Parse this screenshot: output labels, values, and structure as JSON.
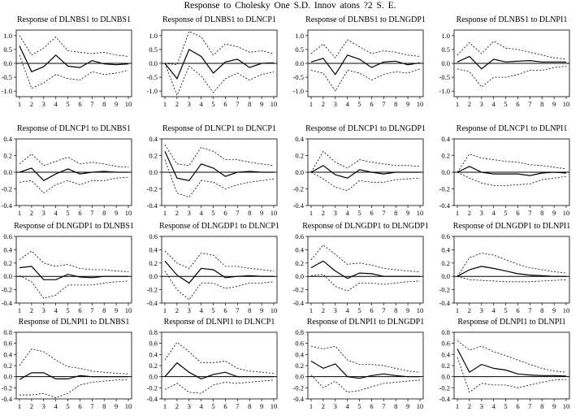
{
  "title": "Response  to  Cholesky  One  S.D. Innov  atons  ?2  S.  E.",
  "chart_data": {
    "type": "line",
    "x_ticks": [
      "1",
      "2",
      "3",
      "4",
      "5",
      "6",
      "7",
      "8",
      "9",
      "10"
    ],
    "grid": false,
    "panels": [
      {
        "title": "Response of DLNBS1 to  DLNBS1",
        "ylim": [
          -1.2,
          1.2
        ],
        "yticks": [
          1.0,
          0.5,
          0.0,
          -0.5,
          -1.0
        ],
        "ytick_labels": [
          "1.0",
          "0.5",
          "0.0",
          "-0.5",
          "-1.0"
        ],
        "response": [
          0.63,
          -0.3,
          -0.12,
          0.3,
          -0.1,
          -0.15,
          0.1,
          -0.02,
          -0.05,
          -0.02
        ],
        "upper": [
          1.0,
          0.3,
          0.55,
          0.95,
          0.45,
          0.4,
          0.35,
          0.4,
          0.3,
          0.25
        ],
        "lower": [
          0.3,
          -0.9,
          -0.7,
          -0.4,
          -0.55,
          -0.6,
          -0.3,
          -0.4,
          -0.35,
          -0.25
        ]
      },
      {
        "title": "Response of DLNBS1 to  DLNCP1",
        "ylim": [
          -1.2,
          1.2
        ],
        "yticks": [
          1.0,
          0.5,
          0.0,
          -0.5,
          -1.0
        ],
        "ytick_labels": [
          "1.0",
          "0.5",
          "0.0",
          "-0.5",
          "-1.0"
        ],
        "response": [
          0.0,
          -0.55,
          0.5,
          0.25,
          -0.35,
          0.05,
          0.15,
          -0.15,
          0.0,
          0.02
        ],
        "upper": [
          0.0,
          -0.05,
          1.15,
          0.95,
          0.3,
          0.7,
          0.6,
          0.4,
          0.45,
          0.35
        ],
        "lower": [
          0.0,
          -1.15,
          -0.1,
          -0.45,
          -1.05,
          -0.55,
          -0.35,
          -0.6,
          -0.4,
          -0.3
        ]
      },
      {
        "title": "Response of DLNBS1 to  DLNGDP1",
        "ylim": [
          -1.2,
          1.2
        ],
        "yticks": [
          1.0,
          0.5,
          0.0,
          -0.5,
          -1.0
        ],
        "ytick_labels": [
          "1.0",
          "0.5",
          "0.0",
          "-0.5",
          "-1.0"
        ],
        "response": [
          0.05,
          0.18,
          -0.4,
          0.3,
          0.15,
          -0.15,
          0.05,
          0.08,
          -0.05,
          0.02
        ],
        "upper": [
          0.35,
          0.7,
          0.2,
          0.85,
          0.6,
          0.35,
          0.45,
          0.4,
          0.3,
          0.25
        ],
        "lower": [
          -0.25,
          -0.35,
          -1.0,
          -0.25,
          -0.35,
          -0.6,
          -0.4,
          -0.3,
          -0.35,
          -0.2
        ]
      },
      {
        "title": "Response of DLNBS1 to  DLNPI1",
        "ylim": [
          -1.2,
          1.2
        ],
        "yticks": [
          1.0,
          0.5,
          0.0,
          -0.5,
          -1.0
        ],
        "ytick_labels": [
          "1.0",
          "0.5",
          "0.0",
          "-0.5",
          "-1.0"
        ],
        "response": [
          0.05,
          0.25,
          -0.2,
          0.15,
          0.05,
          0.08,
          0.1,
          0.05,
          0.05,
          0.05
        ],
        "upper": [
          0.3,
          0.75,
          0.35,
          0.8,
          0.55,
          0.5,
          0.4,
          0.3,
          0.2,
          0.15
        ],
        "lower": [
          -0.2,
          -0.3,
          -0.85,
          -0.5,
          -0.5,
          -0.4,
          -0.25,
          -0.25,
          -0.15,
          -0.1
        ]
      },
      {
        "title": "Response of DLNCP1 to  DLNBS1",
        "ylim": [
          -0.4,
          0.4
        ],
        "yticks": [
          0.4,
          0.2,
          0.0,
          -0.2,
          -0.4
        ],
        "ytick_labels": [
          "0.4",
          "0.2",
          "0.0",
          "-0.2",
          "-0.4"
        ],
        "response": [
          0.0,
          0.05,
          -0.1,
          -0.02,
          0.04,
          -0.02,
          0.0,
          0.01,
          0.0,
          0.0
        ],
        "upper": [
          0.1,
          0.22,
          0.08,
          0.13,
          0.18,
          0.1,
          0.12,
          0.1,
          0.07,
          0.06
        ],
        "lower": [
          -0.12,
          -0.1,
          -0.25,
          -0.15,
          -0.1,
          -0.15,
          -0.1,
          -0.1,
          -0.07,
          -0.06
        ]
      },
      {
        "title": "Response of DLNCP1 to  DLNCP1",
        "ylim": [
          -0.4,
          0.4
        ],
        "yticks": [
          0.4,
          0.2,
          0.0,
          -0.2,
          -0.4
        ],
        "ytick_labels": [
          "0.4",
          "0.2",
          "0.0",
          "-0.2",
          "-0.4"
        ],
        "response": [
          0.25,
          -0.07,
          -0.1,
          0.1,
          0.05,
          -0.05,
          0.0,
          0.01,
          0.0,
          0.0
        ],
        "upper": [
          0.33,
          0.1,
          0.08,
          0.3,
          0.25,
          0.15,
          0.15,
          0.12,
          0.1,
          0.08
        ],
        "lower": [
          0.15,
          -0.25,
          -0.3,
          -0.1,
          -0.12,
          -0.2,
          -0.15,
          -0.12,
          -0.1,
          -0.08
        ]
      },
      {
        "title": "Response of DLNCP1 to  DLNGDP1",
        "ylim": [
          -0.4,
          0.4
        ],
        "yticks": [
          0.4,
          0.2,
          0.0,
          -0.2,
          -0.4
        ],
        "ytick_labels": [
          "0.4",
          "0.2",
          "0.0",
          "-0.2",
          "-0.4"
        ],
        "response": [
          0.0,
          0.08,
          -0.03,
          -0.07,
          0.03,
          0.0,
          -0.02,
          0.0,
          0.0,
          0.0
        ],
        "upper": [
          0.0,
          0.25,
          0.12,
          0.05,
          0.15,
          0.12,
          0.1,
          0.08,
          0.08,
          0.07
        ],
        "lower": [
          0.0,
          -0.08,
          -0.18,
          -0.22,
          -0.1,
          -0.12,
          -0.12,
          -0.09,
          -0.08,
          -0.07
        ]
      },
      {
        "title": "Response of DLNCP1 to  DLNPI1",
        "ylim": [
          -0.4,
          0.4
        ],
        "yticks": [
          0.4,
          0.2,
          0.0,
          -0.2,
          -0.4
        ],
        "ytick_labels": [
          "0.4",
          "0.2",
          "0.0",
          "-0.2",
          "-0.4"
        ],
        "response": [
          0.0,
          0.07,
          0.0,
          -0.02,
          -0.02,
          -0.02,
          -0.04,
          -0.01,
          0.0,
          -0.01
        ],
        "upper": [
          0.0,
          0.22,
          0.17,
          0.15,
          0.13,
          0.12,
          0.09,
          0.08,
          0.06,
          0.04
        ],
        "lower": [
          0.0,
          -0.07,
          -0.13,
          -0.16,
          -0.16,
          -0.15,
          -0.14,
          -0.09,
          -0.07,
          -0.05
        ]
      },
      {
        "title": "Response of DLNGDP1 to  DLNBS1",
        "ylim": [
          -0.4,
          0.6
        ],
        "yticks": [
          0.6,
          0.4,
          0.2,
          0.0,
          -0.2,
          -0.4
        ],
        "ytick_labels": [
          "0.6",
          "0.4",
          "0.2",
          "0.0",
          "-0.2",
          "-0.4"
        ],
        "response": [
          0.13,
          0.15,
          -0.05,
          -0.05,
          0.03,
          -0.01,
          -0.02,
          0.0,
          0.0,
          0.0
        ],
        "upper": [
          0.25,
          0.38,
          0.2,
          0.15,
          0.18,
          0.12,
          0.1,
          0.1,
          0.08,
          0.07
        ],
        "lower": [
          0.01,
          -0.08,
          -0.33,
          -0.28,
          -0.13,
          -0.13,
          -0.13,
          -0.1,
          -0.08,
          -0.07
        ]
      },
      {
        "title": "Response of DLNGDP1 to  DLNCP1",
        "ylim": [
          -0.4,
          0.6
        ],
        "yticks": [
          0.6,
          0.4,
          0.2,
          0.0,
          -0.2,
          -0.4
        ],
        "ytick_labels": [
          "0.6",
          "0.4",
          "0.2",
          "0.0",
          "-0.2",
          "-0.4"
        ],
        "response": [
          0.23,
          0.02,
          -0.1,
          0.12,
          0.1,
          -0.02,
          0.0,
          0.01,
          0.0,
          0.0
        ],
        "upper": [
          0.38,
          0.2,
          0.12,
          0.35,
          0.32,
          0.15,
          0.15,
          0.12,
          0.1,
          0.08
        ],
        "lower": [
          0.08,
          -0.2,
          -0.35,
          -0.1,
          -0.1,
          -0.18,
          -0.15,
          -0.1,
          -0.1,
          -0.08
        ]
      },
      {
        "title": "Response of DLNGDP1 to  DLNGDP1",
        "ylim": [
          -0.4,
          0.6
        ],
        "yticks": [
          0.6,
          0.4,
          0.2,
          0.0,
          -0.2,
          -0.4
        ],
        "ytick_labels": [
          "0.6",
          "0.4",
          "0.2",
          "0.0",
          "-0.2",
          "-0.4"
        ],
        "response": [
          0.13,
          0.23,
          0.08,
          -0.03,
          0.05,
          0.04,
          0.0,
          0.0,
          0.0,
          0.0
        ],
        "upper": [
          0.25,
          0.47,
          0.33,
          0.18,
          0.2,
          0.17,
          0.12,
          0.1,
          0.08,
          0.07
        ],
        "lower": [
          0.01,
          0.03,
          -0.15,
          -0.22,
          -0.1,
          -0.1,
          -0.12,
          -0.1,
          -0.08,
          -0.07
        ]
      },
      {
        "title": "Response of DLNGDP1 to  DLNPI1",
        "ylim": [
          -0.4,
          0.6
        ],
        "yticks": [
          0.6,
          0.4,
          0.2,
          0.0,
          -0.2,
          -0.4
        ],
        "ytick_labels": [
          "0.6",
          "0.4",
          "0.2",
          "0.0",
          "-0.2",
          "-0.4"
        ],
        "response": [
          0.0,
          0.1,
          0.15,
          0.12,
          0.08,
          0.04,
          0.02,
          0.01,
          0.0,
          0.0
        ],
        "upper": [
          0.0,
          0.28,
          0.35,
          0.32,
          0.25,
          0.18,
          0.13,
          0.1,
          0.07,
          0.05
        ],
        "lower": [
          0.0,
          -0.05,
          -0.06,
          -0.07,
          -0.08,
          -0.08,
          -0.08,
          -0.07,
          -0.06,
          -0.05
        ]
      },
      {
        "title": "Response of DLNPI1 to  DLNBS1",
        "ylim": [
          -0.4,
          0.8
        ],
        "yticks": [
          0.8,
          0.6,
          0.4,
          0.2,
          0.0,
          -0.2,
          -0.4
        ],
        "ytick_labels": [
          "0.8",
          "0.6",
          "0.4",
          "0.2",
          "0.0",
          "-0.2",
          "-0.4"
        ],
        "response": [
          -0.05,
          0.07,
          0.07,
          -0.04,
          -0.04,
          0.02,
          0.0,
          0.0,
          0.0,
          0.0
        ],
        "upper": [
          0.2,
          0.5,
          0.45,
          0.3,
          0.18,
          0.15,
          0.1,
          0.08,
          0.06,
          0.05
        ],
        "lower": [
          -0.33,
          -0.33,
          -0.3,
          -0.38,
          -0.3,
          -0.15,
          -0.1,
          -0.08,
          -0.06,
          -0.05
        ]
      },
      {
        "title": "Response of DLNPI1 to  DLNCP1",
        "ylim": [
          -0.4,
          0.8
        ],
        "yticks": [
          0.8,
          0.6,
          0.4,
          0.2,
          0.0,
          -0.2,
          -0.4
        ],
        "ytick_labels": [
          "0.8",
          "0.6",
          "0.4",
          "0.2",
          "0.0",
          "-0.2",
          "-0.4"
        ],
        "response": [
          0.0,
          0.25,
          0.08,
          -0.04,
          0.04,
          0.08,
          0.0,
          0.0,
          0.0,
          0.0
        ],
        "upper": [
          0.3,
          0.62,
          0.45,
          0.25,
          0.25,
          0.28,
          0.15,
          0.1,
          0.08,
          0.06
        ],
        "lower": [
          -0.23,
          -0.12,
          -0.28,
          -0.3,
          -0.15,
          -0.1,
          -0.12,
          -0.1,
          -0.08,
          -0.06
        ]
      },
      {
        "title": "Response of DLNPI1 to  DLNGDP1",
        "ylim": [
          -0.4,
          0.8
        ],
        "yticks": [
          0.8,
          0.6,
          0.4,
          0.2,
          0.0,
          -0.2,
          -0.4
        ],
        "ytick_labels": [
          "0.8",
          "0.6",
          "0.4",
          "0.2",
          "0.0",
          "-0.2",
          "-0.4"
        ],
        "response": [
          0.28,
          0.15,
          0.23,
          0.0,
          -0.03,
          0.02,
          0.05,
          0.02,
          0.0,
          0.0
        ],
        "upper": [
          0.55,
          0.5,
          0.55,
          0.3,
          0.22,
          0.22,
          0.2,
          0.15,
          0.1,
          0.08
        ],
        "lower": [
          0.03,
          -0.2,
          -0.08,
          -0.28,
          -0.25,
          -0.18,
          -0.12,
          -0.1,
          -0.08,
          -0.06
        ]
      },
      {
        "title": "Response of DLNPI1 to  DLNPI1",
        "ylim": [
          -0.4,
          0.8
        ],
        "yticks": [
          0.8,
          0.6,
          0.4,
          0.2,
          0.0,
          -0.2,
          -0.4
        ],
        "ytick_labels": [
          "0.8",
          "0.6",
          "0.4",
          "0.2",
          "0.0",
          "-0.2",
          "-0.4"
        ],
        "response": [
          0.5,
          0.08,
          0.22,
          0.15,
          0.12,
          0.05,
          0.03,
          0.02,
          0.02,
          0.01
        ],
        "upper": [
          0.65,
          0.48,
          0.55,
          0.45,
          0.38,
          0.3,
          0.22,
          0.15,
          0.1,
          0.08
        ],
        "lower": [
          0.35,
          -0.28,
          -0.12,
          -0.15,
          -0.15,
          -0.2,
          -0.15,
          -0.1,
          -0.06,
          -0.05
        ]
      }
    ]
  }
}
